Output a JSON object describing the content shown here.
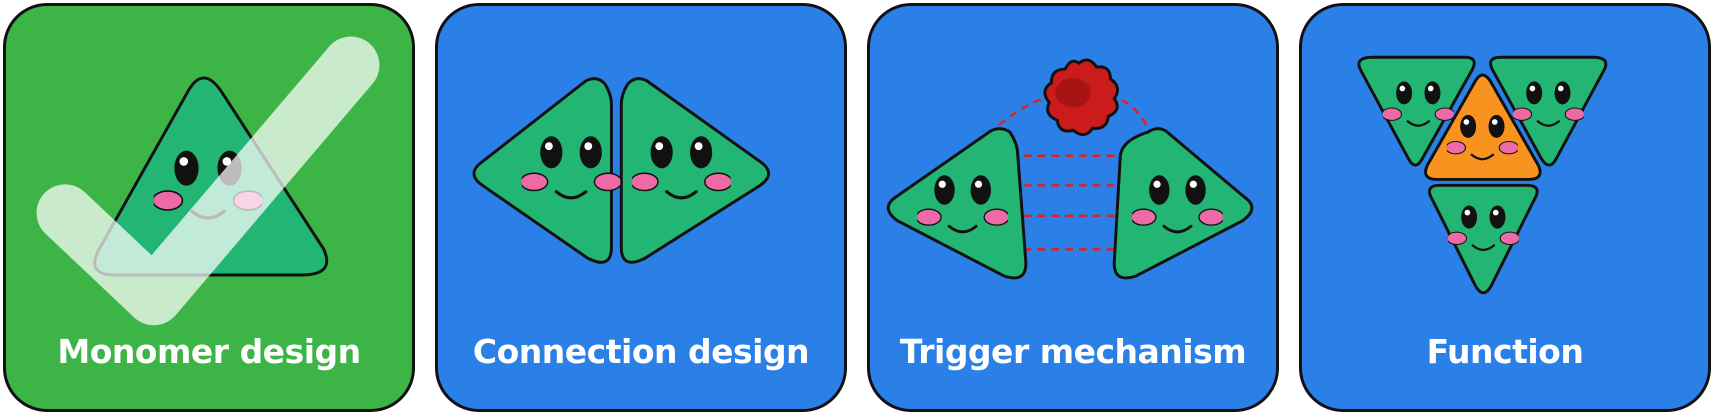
{
  "panels": [
    {
      "label": "Monomer design",
      "color": "#3db446"
    },
    {
      "label": "Connection design",
      "color": "#2a80e6"
    },
    {
      "label": "Trigger mechanism",
      "color": "#2a80e6"
    },
    {
      "label": "Function",
      "color": "#2a80e6"
    }
  ],
  "colors": {
    "monomer": "#22b573",
    "highlight_monomer": "#f7931e",
    "cheek": "#ee6aa7",
    "trigger": "#cc1b1b",
    "link": "#e02020",
    "checkmark": "#ffffff"
  },
  "icons": [
    "check-icon",
    "trigger-blob-icon"
  ]
}
